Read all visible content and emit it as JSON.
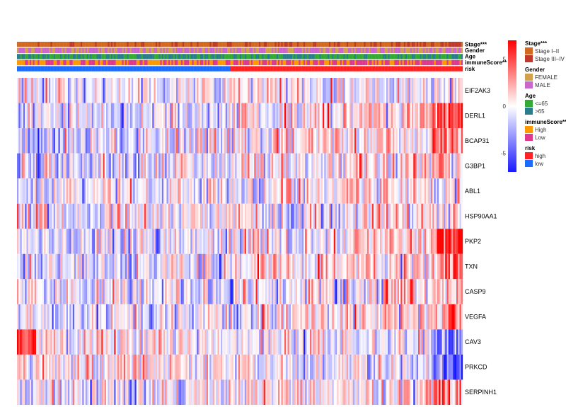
{
  "chart_data": {
    "type": "heatmap",
    "title": "",
    "xlabel": "",
    "ylabel": "",
    "n_samples": 280,
    "risk_split_fraction": 0.48,
    "color_scale": {
      "low_color": "#1a1aff",
      "mid_color": "#ffffff",
      "high_color": "#ff0000",
      "ticks": [
        {
          "value": 5,
          "label": "5"
        },
        {
          "value": 0,
          "label": "0"
        },
        {
          "value": -5,
          "label": "-5"
        }
      ],
      "range": [
        -7,
        7
      ]
    },
    "annotation_tracks": [
      {
        "name": "Stage***",
        "colors": {
          "Stage I-II": "#d2691e",
          "Stage III-IV": "#c0392b"
        }
      },
      {
        "name": "Gender",
        "colors": {
          "FEMALE": "#d2a14e",
          "MALE": "#cc66cc"
        }
      },
      {
        "name": "Age",
        "colors": {
          "<=65": "#33aa33",
          ">65": "#2a7d8c"
        }
      },
      {
        "name": "immuneScore**",
        "colors": {
          "High": "#ff9900",
          "Low": "#e0388e"
        }
      },
      {
        "name": "risk",
        "colors": {
          "high": "#ff2222",
          "low": "#1a6bff"
        }
      }
    ],
    "genes": [
      {
        "name": "EIF2AK3",
        "trend": 0.1,
        "edge": 0.0
      },
      {
        "name": "DERL1",
        "trend": 0.55,
        "edge": 1.0
      },
      {
        "name": "BCAP31",
        "trend": 0.55,
        "edge": 0.5
      },
      {
        "name": "G3BP1",
        "trend": 0.4,
        "edge": 0.3
      },
      {
        "name": "ABL1",
        "trend": 0.25,
        "edge": 0.0
      },
      {
        "name": "HSP90AA1",
        "trend": 0.3,
        "edge": 0.0
      },
      {
        "name": "PKP2",
        "trend": 0.55,
        "edge": 1.2
      },
      {
        "name": "TXN",
        "trend": 0.45,
        "edge": 0.6
      },
      {
        "name": "CASP9",
        "trend": 0.25,
        "edge": 0.0
      },
      {
        "name": "VEGFA",
        "trend": 0.45,
        "edge": 0.5
      },
      {
        "name": "CAV3",
        "trend": -0.2,
        "edge": -1.0
      },
      {
        "name": "PRKCD",
        "trend": -0.3,
        "edge": -1.2
      },
      {
        "name": "SERPINH1",
        "trend": 0.45,
        "edge": 0.6
      }
    ],
    "legend": {
      "position": "right",
      "groups": [
        {
          "title": "Stage***",
          "items": [
            {
              "label": "Stage I–II",
              "color": "#d2691e"
            },
            {
              "label": "Stage III–IV",
              "color": "#c0392b"
            }
          ]
        },
        {
          "title": "Gender",
          "items": [
            {
              "label": "FEMALE",
              "color": "#d2a14e"
            },
            {
              "label": "MALE",
              "color": "#cc66cc"
            }
          ]
        },
        {
          "title": "Age",
          "items": [
            {
              "label": "<=65",
              "color": "#33aa33"
            },
            {
              "label": ">65",
              "color": "#2a7d8c"
            }
          ]
        },
        {
          "title": "immuneScore**",
          "items": [
            {
              "label": "High",
              "color": "#ff9900"
            },
            {
              "label": "Low",
              "color": "#e0388e"
            }
          ]
        },
        {
          "title": "risk",
          "items": [
            {
              "label": "high",
              "color": "#ff2222"
            },
            {
              "label": "low",
              "color": "#1a6bff"
            }
          ]
        }
      ]
    }
  }
}
